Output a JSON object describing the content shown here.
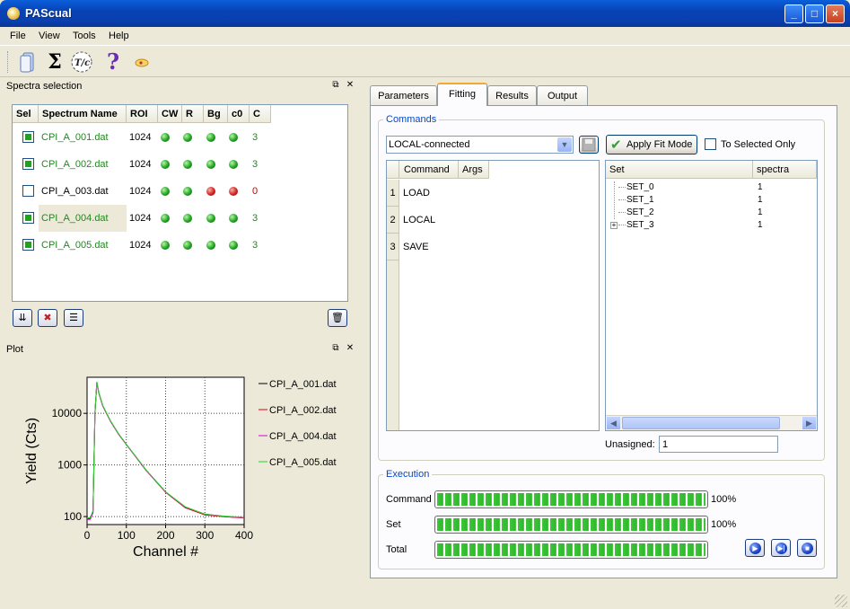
{
  "window": {
    "title": "PAScual"
  },
  "menu": [
    "File",
    "View",
    "Tools",
    "Help"
  ],
  "toolbar": {
    "icons": [
      "file-open-icon",
      "sigma-icon",
      "tc-icon",
      "help-icon",
      "about-icon"
    ],
    "sigma": "Σ",
    "tc": "T/c",
    "help": "?"
  },
  "spectra_panel": {
    "title": "Spectra selection",
    "headers": [
      "Sel",
      "Spectrum Name",
      "ROI",
      "CW",
      "R",
      "Bg",
      "c0",
      "C"
    ],
    "rows": [
      {
        "selected": true,
        "name": "CPI_A_001.dat",
        "roi": "1024",
        "leds": [
          "green",
          "green",
          "green",
          "green"
        ],
        "c": "3"
      },
      {
        "selected": true,
        "name": "CPI_A_002.dat",
        "roi": "1024",
        "leds": [
          "green",
          "green",
          "green",
          "green"
        ],
        "c": "3"
      },
      {
        "selected": false,
        "name": "CPI_A_003.dat",
        "roi": "1024",
        "leds": [
          "green",
          "green",
          "red",
          "red"
        ],
        "c": "0"
      },
      {
        "selected": true,
        "name": "CPI_A_004.dat",
        "roi": "1024",
        "leds": [
          "green",
          "green",
          "green",
          "green"
        ],
        "c": "3"
      },
      {
        "selected": true,
        "name": "CPI_A_005.dat",
        "roi": "1024",
        "leds": [
          "green",
          "green",
          "green",
          "green"
        ],
        "c": "3"
      }
    ]
  },
  "plot_panel": {
    "title": "Plot",
    "chart_data": {
      "type": "line",
      "xlabel": "Channel #",
      "ylabel": "Yield (Cts)",
      "xlim": [
        0,
        400
      ],
      "ylim": [
        70,
        50000
      ],
      "y_scale": "log",
      "grid": true,
      "legend_position": "right",
      "xticks": [
        "0",
        "100",
        "200",
        "300",
        "400"
      ],
      "yticks": [
        "100",
        "1000",
        "10000"
      ],
      "series": [
        {
          "name": "CPI_A_001.dat",
          "color": "#000000",
          "x": [
            0,
            8,
            15,
            20,
            25,
            30,
            40,
            60,
            80,
            100,
            150,
            200,
            250,
            300,
            350,
            400
          ],
          "y": [
            90,
            90,
            120,
            10000,
            40000,
            25000,
            14000,
            7000,
            4000,
            2500,
            800,
            300,
            150,
            110,
            100,
            95
          ]
        },
        {
          "name": "CPI_A_002.dat",
          "color": "#e0001a",
          "x": [
            0,
            8,
            15,
            20,
            25,
            30,
            40,
            60,
            80,
            100,
            150,
            200,
            250,
            300,
            350,
            400
          ],
          "y": [
            92,
            92,
            125,
            10200,
            39000,
            24500,
            13800,
            6900,
            3950,
            2480,
            790,
            295,
            148,
            108,
            99,
            94
          ]
        },
        {
          "name": "CPI_A_004.dat",
          "color": "#d600d6",
          "x": [
            0,
            8,
            15,
            20,
            25,
            30,
            40,
            60,
            80,
            100,
            150,
            200,
            250,
            300,
            350,
            400
          ],
          "y": [
            88,
            88,
            118,
            9800,
            39500,
            24800,
            13900,
            6950,
            3980,
            2490,
            795,
            298,
            152,
            112,
            101,
            96
          ]
        },
        {
          "name": "CPI_A_005.dat",
          "color": "#27d327",
          "x": [
            0,
            8,
            15,
            20,
            25,
            30,
            40,
            60,
            80,
            100,
            150,
            200,
            250,
            300,
            350,
            400
          ],
          "y": [
            95,
            95,
            130,
            10500,
            41000,
            25500,
            14200,
            7100,
            4050,
            2520,
            810,
            302,
            155,
            111,
            102,
            97
          ]
        }
      ]
    }
  },
  "tabs": [
    "Parameters",
    "Fitting",
    "Results",
    "Output"
  ],
  "active_tab": "Fitting",
  "commands": {
    "group_label": "Commands",
    "mode_value": "LOCAL-connected",
    "apply_label": "Apply Fit Mode",
    "to_selected_label": "To Selected Only",
    "cmd_headers": [
      "Command",
      "Args"
    ],
    "cmd_rows": [
      {
        "num": "1",
        "command": "LOAD"
      },
      {
        "num": "2",
        "command": "LOCAL"
      },
      {
        "num": "3",
        "command": "SAVE"
      }
    ],
    "set_headers": [
      "Set",
      "spectra"
    ],
    "sets": [
      {
        "name": "SET_0",
        "spectra": "1"
      },
      {
        "name": "SET_1",
        "spectra": "1"
      },
      {
        "name": "SET_2",
        "spectra": "1"
      },
      {
        "name": "SET_3",
        "spectra": "1"
      }
    ],
    "unassigned_label": "Unasigned:",
    "unassigned_value": "1"
  },
  "execution": {
    "group_label": "Execution",
    "rows": [
      {
        "label": "Command",
        "value": "100%",
        "progress": 1.0
      },
      {
        "label": "Set",
        "value": "100%",
        "progress": 1.0
      },
      {
        "label": "Total",
        "value": "",
        "progress": 1.0
      }
    ]
  }
}
